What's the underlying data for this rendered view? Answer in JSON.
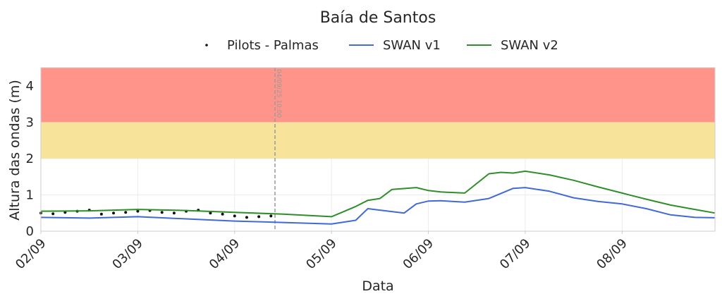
{
  "chart_data": {
    "type": "line",
    "title": "Baía de Santos",
    "xlabel": "Data",
    "ylabel": "Altura das ondas (m)",
    "ylim": [
      0,
      4.5
    ],
    "xlim": [
      "2025-09-02T00:00",
      "2025-09-08T23:00"
    ],
    "grid": true,
    "legend_position": "top-center",
    "x_tick_labels": [
      "02/09",
      "03/09",
      "04/09",
      "05/09",
      "06/09",
      "07/09",
      "08/09"
    ],
    "y_tick_labels": [
      "0",
      "1",
      "2",
      "3",
      "4"
    ],
    "bands": [
      {
        "y": [
          2,
          3
        ],
        "color": "#f8e39b"
      },
      {
        "y": [
          3,
          4.5
        ],
        "color": "#ff958a"
      }
    ],
    "vline": {
      "x": "2025-09-04T10:00",
      "label": "04/09/25 10:00",
      "color": "#999999"
    },
    "series": [
      {
        "name": "Pilots - Palmas",
        "style": "points",
        "color": "#111111",
        "x": [
          "2025-09-02T00:00",
          "2025-09-02T03:00",
          "2025-09-02T06:00",
          "2025-09-02T09:00",
          "2025-09-02T12:00",
          "2025-09-02T15:00",
          "2025-09-02T18:00",
          "2025-09-02T21:00",
          "2025-09-03T00:00",
          "2025-09-03T03:00",
          "2025-09-03T06:00",
          "2025-09-03T09:00",
          "2025-09-03T12:00",
          "2025-09-03T15:00",
          "2025-09-03T18:00",
          "2025-09-03T21:00",
          "2025-09-04T00:00",
          "2025-09-04T03:00",
          "2025-09-04T06:00",
          "2025-09-04T09:00"
        ],
        "values": [
          0.5,
          0.48,
          0.52,
          0.55,
          0.58,
          0.47,
          0.5,
          0.52,
          0.55,
          0.57,
          0.52,
          0.5,
          0.55,
          0.58,
          0.5,
          0.47,
          0.42,
          0.38,
          0.4,
          0.42
        ]
      },
      {
        "name": "SWAN v1",
        "style": "line",
        "color": "#4169d8",
        "x": [
          "2025-09-02T00:00",
          "2025-09-02T12:00",
          "2025-09-03T00:00",
          "2025-09-03T12:00",
          "2025-09-04T00:00",
          "2025-09-04T12:00",
          "2025-09-05T00:00",
          "2025-09-05T06:00",
          "2025-09-05T09:00",
          "2025-09-05T12:00",
          "2025-09-05T18:00",
          "2025-09-05T21:00",
          "2025-09-06T00:00",
          "2025-09-06T03:00",
          "2025-09-06T09:00",
          "2025-09-06T15:00",
          "2025-09-06T21:00",
          "2025-09-07T00:00",
          "2025-09-07T06:00",
          "2025-09-07T12:00",
          "2025-09-07T18:00",
          "2025-09-08T00:00",
          "2025-09-08T06:00",
          "2025-09-08T12:00",
          "2025-09-08T18:00",
          "2025-09-08T23:00"
        ],
        "values": [
          0.38,
          0.36,
          0.4,
          0.34,
          0.28,
          0.24,
          0.2,
          0.3,
          0.62,
          0.58,
          0.5,
          0.75,
          0.83,
          0.84,
          0.8,
          0.9,
          1.18,
          1.2,
          1.1,
          0.92,
          0.82,
          0.75,
          0.62,
          0.45,
          0.38,
          0.37
        ]
      },
      {
        "name": "SWAN v2",
        "style": "line",
        "color": "#2f8e2a",
        "x": [
          "2025-09-02T00:00",
          "2025-09-02T12:00",
          "2025-09-03T00:00",
          "2025-09-03T12:00",
          "2025-09-04T00:00",
          "2025-09-04T12:00",
          "2025-09-05T00:00",
          "2025-09-05T06:00",
          "2025-09-05T09:00",
          "2025-09-05T12:00",
          "2025-09-05T15:00",
          "2025-09-05T21:00",
          "2025-09-06T00:00",
          "2025-09-06T03:00",
          "2025-09-06T09:00",
          "2025-09-06T15:00",
          "2025-09-06T18:00",
          "2025-09-06T21:00",
          "2025-09-07T00:00",
          "2025-09-07T06:00",
          "2025-09-07T12:00",
          "2025-09-07T18:00",
          "2025-09-08T00:00",
          "2025-09-08T06:00",
          "2025-09-08T12:00",
          "2025-09-08T18:00",
          "2025-09-08T23:00"
        ],
        "values": [
          0.55,
          0.56,
          0.6,
          0.57,
          0.52,
          0.47,
          0.4,
          0.68,
          0.85,
          0.9,
          1.15,
          1.2,
          1.12,
          1.08,
          1.05,
          1.58,
          1.62,
          1.6,
          1.65,
          1.55,
          1.4,
          1.22,
          1.05,
          0.88,
          0.72,
          0.6,
          0.5
        ]
      }
    ]
  }
}
